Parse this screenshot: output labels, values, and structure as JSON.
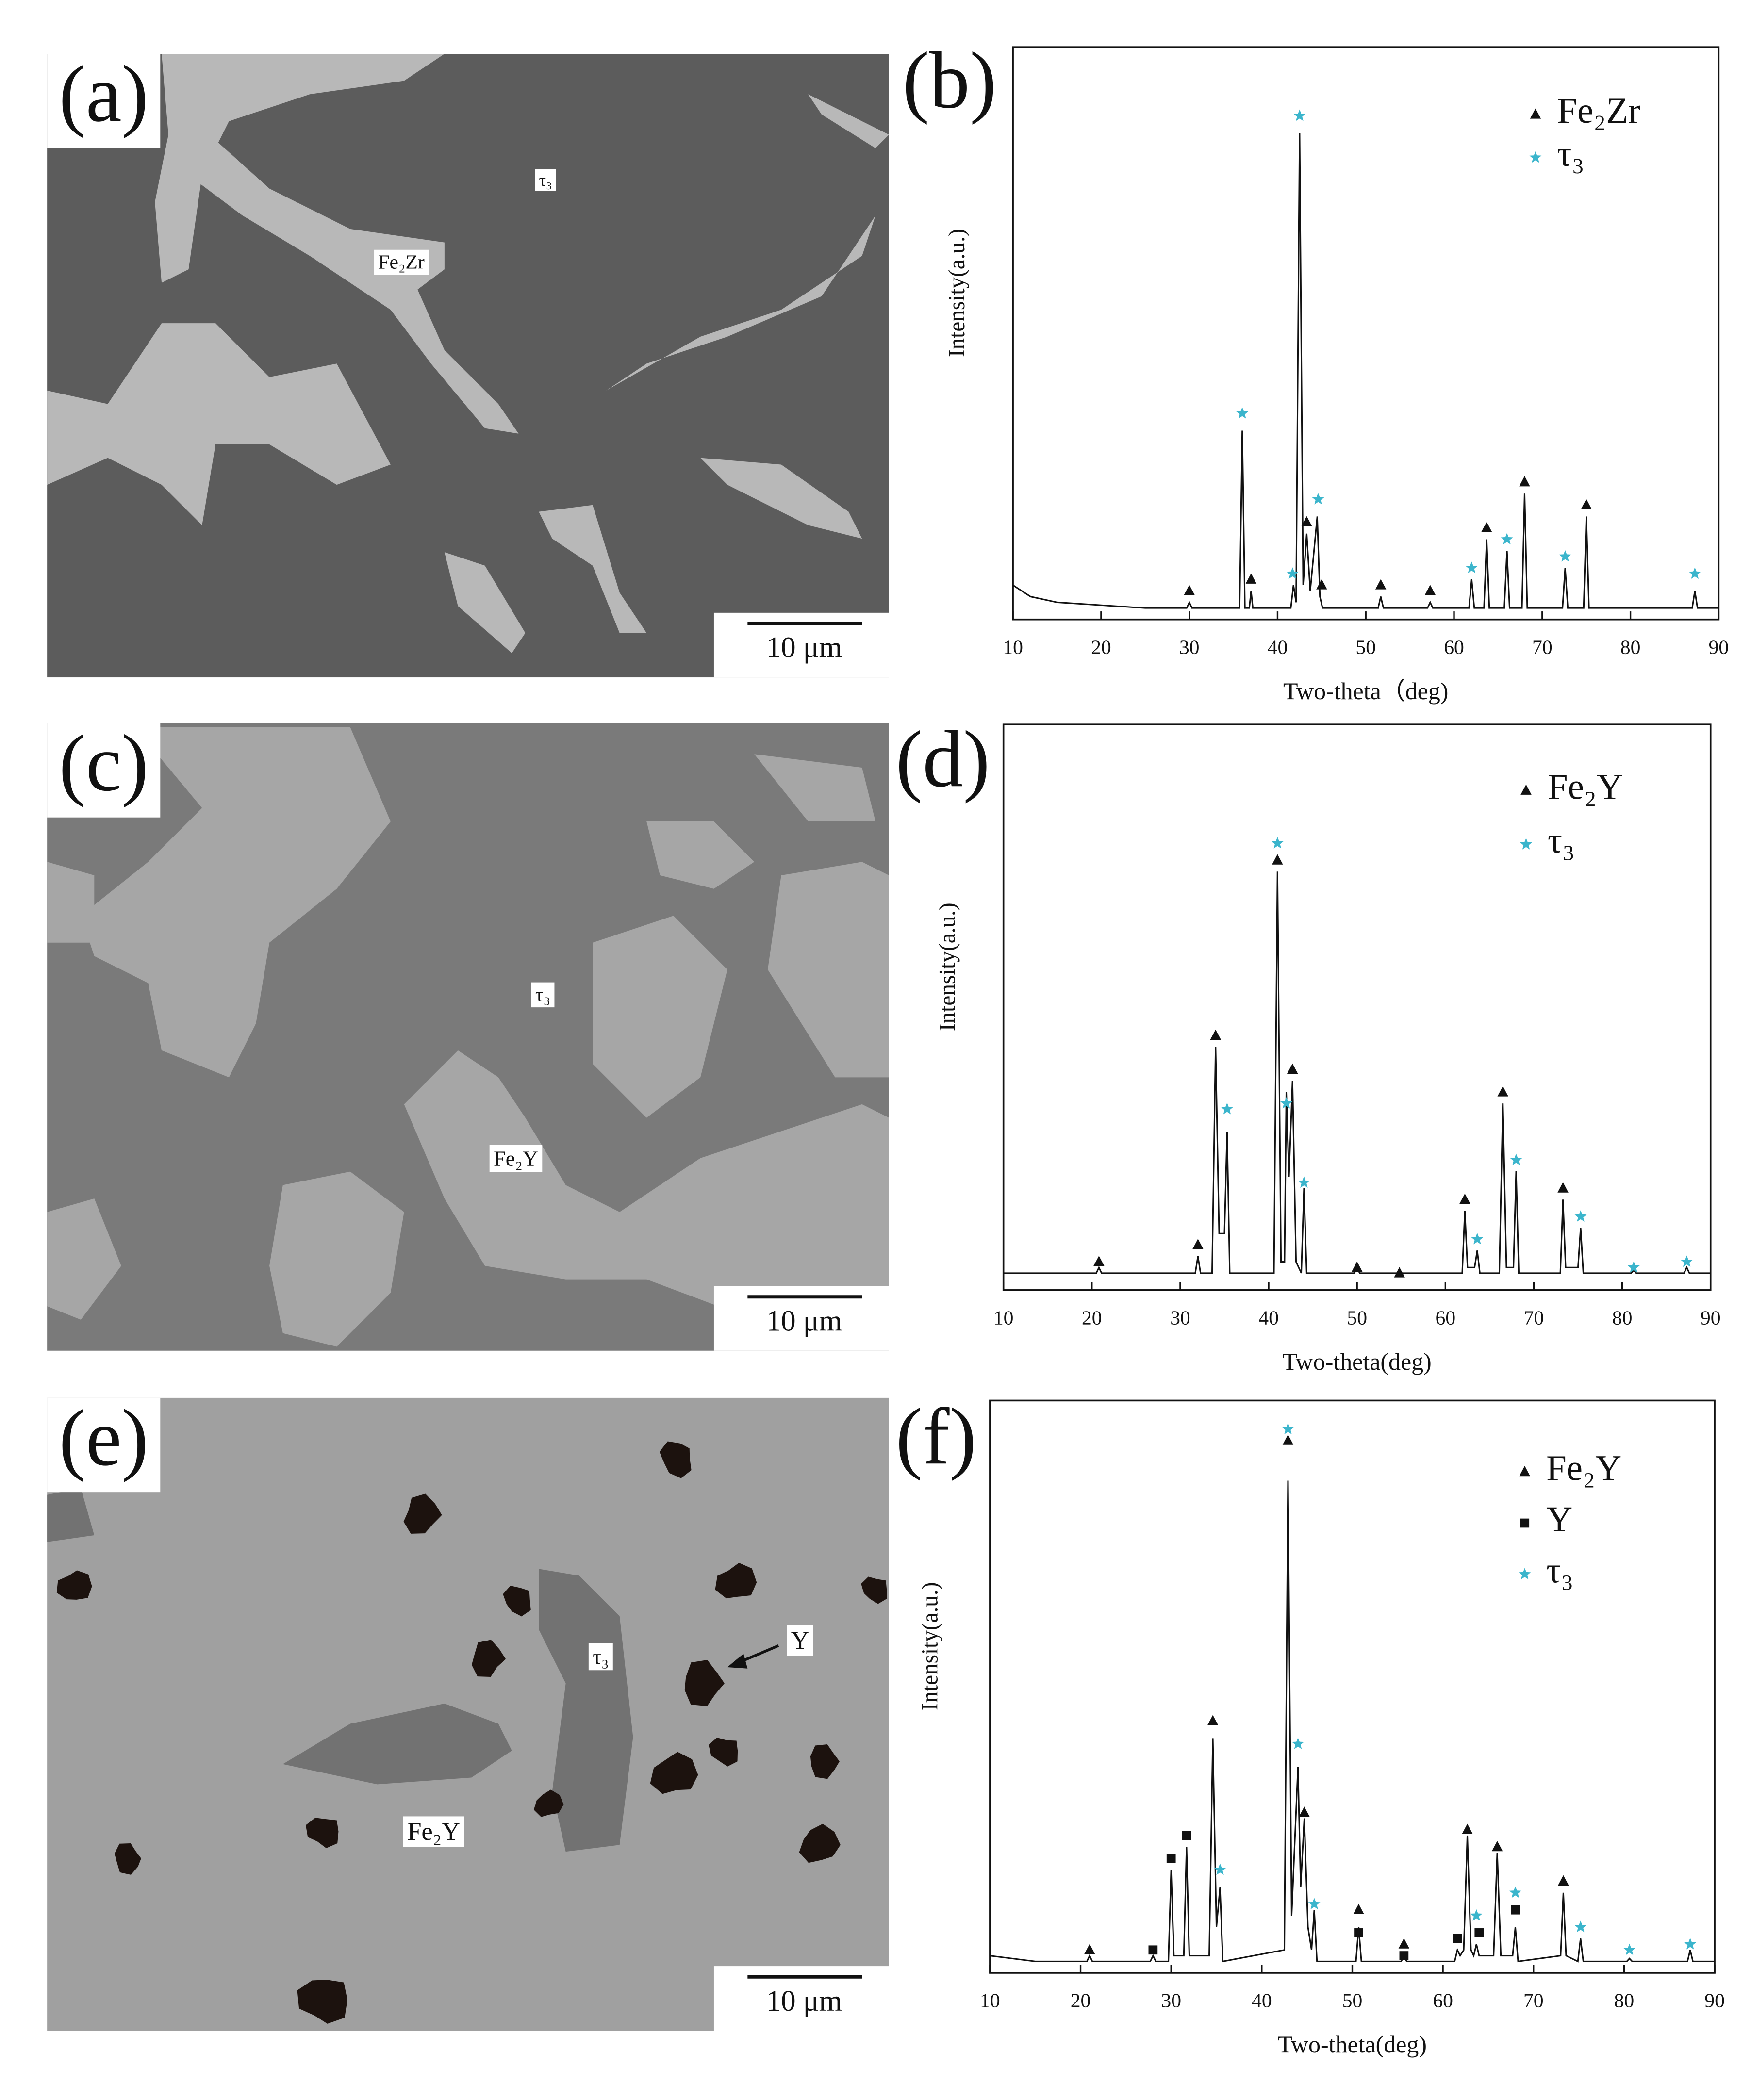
{
  "micrographs": [
    {
      "label": "(a)",
      "annotations": [
        "τ₃",
        "Fe₂Zr"
      ],
      "scale_bar": "10 μm"
    },
    {
      "label": "(c)",
      "annotations": [
        "τ₃",
        "Fe₂Y"
      ],
      "scale_bar": "10 μm"
    },
    {
      "label": "(e)",
      "annotations": [
        "τ₃",
        "Y",
        "Fe₂Y"
      ],
      "scale_bar": "10 μm"
    }
  ],
  "chart_data": [
    {
      "type": "line",
      "label": "(b)",
      "x_label": "Two-theta（deg)",
      "y_label": "Intensity(a.u.)",
      "xlim": [
        10,
        90
      ],
      "ylim": [
        0,
        100
      ],
      "xticks": [
        10,
        20,
        30,
        40,
        50,
        60,
        70,
        80,
        90
      ],
      "line": {
        "color": "#111111",
        "x": [
          10,
          12,
          15,
          20,
          25,
          29.7,
          30,
          30.3,
          35.7,
          36,
          36.3,
          36.8,
          37,
          37.2,
          41.5,
          41.8,
          42.1,
          42.5,
          42.9,
          43.3,
          43.7,
          44.5,
          44.8,
          45.1,
          51.4,
          51.7,
          52,
          57,
          57.3,
          57.6,
          61.7,
          62,
          62.3,
          63.4,
          63.7,
          64,
          65.7,
          66,
          66.3,
          67.7,
          68,
          68.3,
          72.3,
          72.6,
          72.9,
          74.7,
          75,
          75.3,
          87,
          87.3,
          87.6,
          90
        ],
        "values": [
          6,
          4,
          3,
          2.5,
          2,
          2,
          3,
          2,
          2,
          33,
          2,
          2,
          5,
          2,
          2,
          6,
          3,
          85,
          6,
          15,
          5,
          18,
          4,
          2,
          2,
          4,
          2,
          2,
          3,
          2,
          2,
          7,
          2,
          2,
          14,
          2,
          2,
          12,
          2,
          2,
          22,
          2,
          2,
          9,
          2,
          2,
          18,
          2,
          2,
          5,
          2,
          2
        ]
      },
      "series": [
        {
          "name": "Fe₂Zr",
          "marker": "triangle",
          "color": "#111111",
          "x": [
            30,
            37,
            43.3,
            45,
            51.7,
            57.3,
            63.7,
            68,
            75
          ],
          "values": [
            5,
            7,
            17,
            6,
            6,
            5,
            16,
            24,
            20
          ]
        },
        {
          "name": "τ₃",
          "marker": "star",
          "color": "#3bb5cc",
          "x": [
            36,
            41.7,
            42.5,
            44.6,
            62,
            66,
            72.6,
            87.3
          ],
          "values": [
            36,
            8,
            88,
            21,
            9,
            14,
            11,
            8
          ]
        }
      ]
    },
    {
      "type": "line",
      "label": "(d)",
      "x_label": "Two-theta(deg)",
      "y_label": "Intensity(a.u.)",
      "xlim": [
        10,
        90
      ],
      "ylim": [
        0,
        100
      ],
      "xticks": [
        10,
        20,
        30,
        40,
        50,
        60,
        70,
        80,
        90
      ],
      "line": {
        "color": "#111111",
        "x": [
          10,
          15,
          20.5,
          20.8,
          21.1,
          25,
          31.7,
          32,
          32.3,
          33.6,
          34,
          34.4,
          35,
          35.3,
          35.6,
          40.6,
          41,
          41.4,
          41.8,
          42,
          42.3,
          42.7,
          43.1,
          43.7,
          44,
          44.3,
          49.7,
          50,
          50.3,
          54.5,
          54.8,
          55.1,
          61.9,
          62.2,
          62.5,
          63.3,
          63.6,
          63.9,
          66.1,
          66.5,
          66.9,
          67.7,
          68,
          68.3,
          73,
          73.3,
          73.6,
          75,
          75.3,
          75.6,
          81,
          81.3,
          81.6,
          87,
          87.3,
          87.6,
          90
        ],
        "values": [
          3,
          3,
          3,
          4,
          3,
          3,
          3,
          6,
          3,
          3,
          43,
          10,
          10,
          28,
          3,
          3,
          74,
          5,
          5,
          35,
          20,
          37,
          5,
          3,
          18,
          3,
          3,
          4,
          3,
          3,
          3.5,
          3,
          3,
          14,
          4,
          4,
          7,
          3,
          3,
          33,
          4,
          4,
          21,
          3,
          3,
          16,
          4,
          4,
          11,
          3,
          3,
          3.5,
          3,
          3,
          4,
          3,
          3
        ]
      },
      "series": [
        {
          "name": "Fe₂Y",
          "marker": "triangle",
          "color": "#111111",
          "x": [
            20.8,
            32,
            34,
            41,
            42.7,
            50,
            54.8,
            62.2,
            66.5,
            73.3
          ],
          "values": [
            5,
            8,
            45,
            76,
            39,
            4,
            3,
            16,
            35,
            18
          ]
        },
        {
          "name": "τ₃",
          "marker": "star",
          "color": "#3bb5cc",
          "x": [
            35.3,
            41,
            42,
            44,
            63.6,
            68,
            75.3,
            81.3,
            87.3
          ],
          "values": [
            32,
            79,
            33,
            19,
            9,
            23,
            13,
            4,
            5
          ]
        }
      ]
    },
    {
      "type": "line",
      "label": "(f)",
      "x_label": "Two-theta(deg)",
      "y_label": "Intensity(a.u.)",
      "xlim": [
        10,
        90
      ],
      "ylim": [
        0,
        100
      ],
      "xticks": [
        10,
        20,
        30,
        40,
        50,
        60,
        70,
        80,
        90
      ],
      "line": {
        "color": "#111111",
        "x": [
          10,
          15,
          20.7,
          21,
          21.3,
          25,
          27.7,
          28,
          28.3,
          29.7,
          30,
          30.3,
          31.4,
          31.7,
          32,
          34.2,
          34.6,
          35,
          35.4,
          35.7,
          42.5,
          42.9,
          43.3,
          44,
          44.3,
          44.7,
          45.1,
          45.5,
          45.8,
          46.1,
          50.4,
          50.7,
          51,
          55.4,
          55.7,
          56,
          61.3,
          61.6,
          61.9,
          62.3,
          62.7,
          63.1,
          63.4,
          63.7,
          64,
          65.6,
          66,
          66.4,
          67.7,
          68,
          68.3,
          73,
          73.3,
          73.6,
          74.9,
          75.2,
          75.5,
          80.3,
          80.6,
          80.9,
          87,
          87.3,
          87.6,
          90
        ],
        "values": [
          3,
          2,
          2,
          3,
          2,
          2,
          2,
          3,
          2,
          2,
          18,
          3,
          3,
          22,
          3,
          3,
          41,
          8,
          15,
          2,
          4,
          86,
          10,
          36,
          15,
          27,
          8,
          4,
          11,
          2,
          2,
          8,
          2,
          2,
          3,
          2,
          2,
          4,
          3,
          4,
          24,
          4,
          3,
          5,
          3,
          3,
          21,
          3,
          3,
          8,
          2,
          3,
          14,
          3,
          2,
          6,
          2,
          2,
          2.5,
          2,
          2,
          4,
          2,
          2
        ]
      },
      "series": [
        {
          "name": "Fe₂Y",
          "marker": "triangle",
          "color": "#111111",
          "x": [
            21,
            34.6,
            42.9,
            44.7,
            50.7,
            55.7,
            62.7,
            66,
            73.3
          ],
          "values": [
            4,
            44,
            93,
            28,
            11,
            5,
            25,
            22,
            16
          ]
        },
        {
          "name": "Y",
          "marker": "square",
          "color": "#111111",
          "x": [
            28,
            30,
            31.7,
            50.7,
            55.7,
            61.6,
            64,
            68
          ],
          "values": [
            4,
            20,
            24,
            7,
            3,
            6,
            7,
            11
          ]
        },
        {
          "name": "τ₃",
          "marker": "star",
          "color": "#3bb5cc",
          "x": [
            35.4,
            42.9,
            44,
            45.8,
            63.7,
            68,
            75.2,
            80.6,
            87.3
          ],
          "values": [
            18,
            95,
            40,
            12,
            10,
            14,
            8,
            4,
            5
          ]
        }
      ]
    }
  ]
}
